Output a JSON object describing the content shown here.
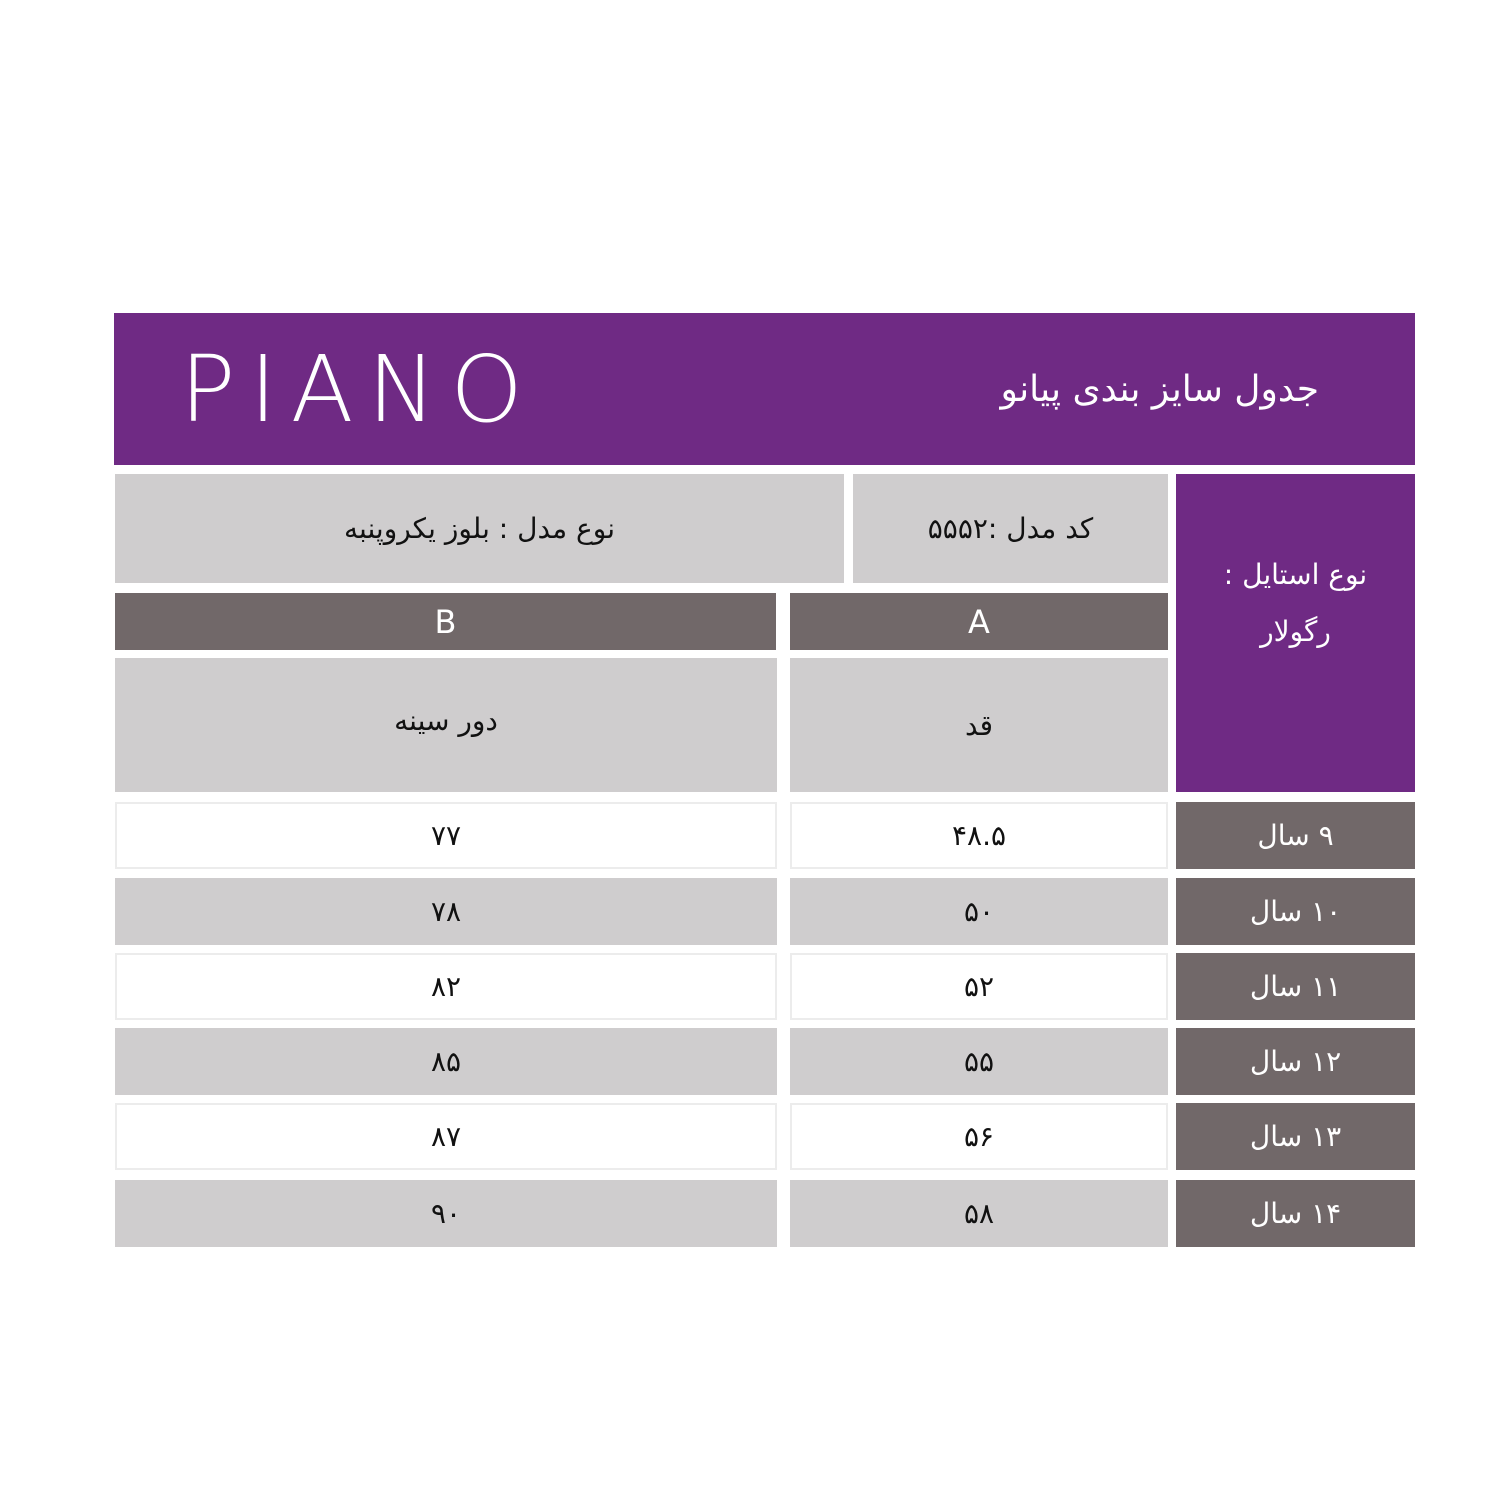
{
  "header": {
    "logo": "PIANO",
    "title": "جدول سایز بندی پیانو"
  },
  "info": {
    "model_type": "نوع مدل : بلوز یکروپنبه",
    "model_code": "کد مدل :۵۵۵۲",
    "style_label": "نوع استایل :",
    "style_value": "رگولار"
  },
  "columns": [
    {
      "letter": "A",
      "label": "قد"
    },
    {
      "letter": "B",
      "label": "دور سینه"
    }
  ],
  "rows": [
    {
      "age": "۹ سال",
      "a": "۴۸.۵",
      "b": "۷۷"
    },
    {
      "age": "۱۰ سال",
      "a": "۵۰",
      "b": "۷۸"
    },
    {
      "age": "۱۱ سال",
      "a": "۵۲",
      "b": "۸۲"
    },
    {
      "age": "۱۲ سال",
      "a": "۵۵",
      "b": "۸۵"
    },
    {
      "age": "۱۳ سال",
      "a": "۵۶",
      "b": "۸۷"
    },
    {
      "age": "۱۴ سال",
      "a": "۵۸",
      "b": "۹۰"
    }
  ],
  "colors": {
    "purple": "#6f2a84",
    "dark_gray": "#716869",
    "light_gray": "#cfcdce"
  }
}
